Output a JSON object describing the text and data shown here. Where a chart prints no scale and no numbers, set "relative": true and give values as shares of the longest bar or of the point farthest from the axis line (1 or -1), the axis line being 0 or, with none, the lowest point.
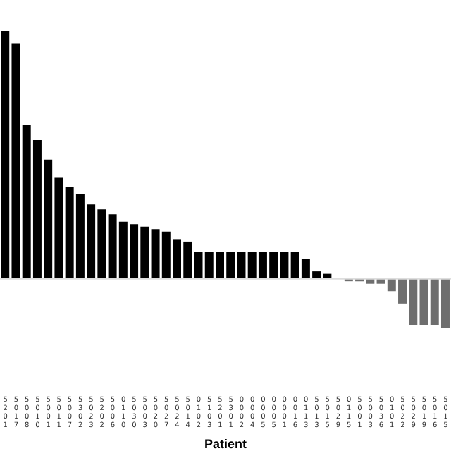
{
  "chart_data": {
    "type": "bar",
    "relative": true,
    "xlabel": "Patient",
    "categories": [
      "5201",
      "5017",
      "5008",
      "5010",
      "5001",
      "5011",
      "5007",
      "5302",
      "5023",
      "5202",
      "5006",
      "0110",
      "5030",
      "5003",
      "5020",
      "5027",
      "5024",
      "5014",
      "0102",
      "5103",
      "5201",
      "5301",
      "0002",
      "0004",
      "0005",
      "0005",
      "0001",
      "0016",
      "0113",
      "5013",
      "5015",
      "5029",
      "0115",
      "5001",
      "5003",
      "5036",
      "0101",
      "5022",
      "5029",
      "5019",
      "5016",
      "5015"
    ],
    "values": [
      1,
      0.95,
      0.62,
      0.56,
      0.48,
      0.41,
      0.37,
      0.34,
      0.3,
      0.28,
      0.26,
      0.23,
      0.22,
      0.21,
      0.2,
      0.19,
      0.16,
      0.15,
      0.11,
      0.11,
      0.11,
      0.11,
      0.11,
      0.11,
      0.11,
      0.11,
      0.11,
      0.11,
      0.08,
      0.03,
      0.02,
      0,
      -0.01,
      -0.01,
      -0.02,
      -0.02,
      -0.05,
      -0.1,
      -0.186,
      -0.186,
      -0.186,
      -0.2
    ],
    "colors": [
      "#000000",
      "#000000",
      "#000000",
      "#000000",
      "#000000",
      "#000000",
      "#000000",
      "#000000",
      "#000000",
      "#000000",
      "#000000",
      "#000000",
      "#000000",
      "#000000",
      "#000000",
      "#000000",
      "#000000",
      "#000000",
      "#000000",
      "#000000",
      "#000000",
      "#000000",
      "#000000",
      "#000000",
      "#000000",
      "#000000",
      "#000000",
      "#000000",
      "#000000",
      "#000000",
      "#000000",
      "#000000",
      "#6e6e6e",
      "#6e6e6e",
      "#6e6e6e",
      "#6e6e6e",
      "#6e6e6e",
      "#6e6e6e",
      "#6e6e6e",
      "#6e6e6e",
      "#6e6e6e",
      "#6e6e6e"
    ]
  }
}
